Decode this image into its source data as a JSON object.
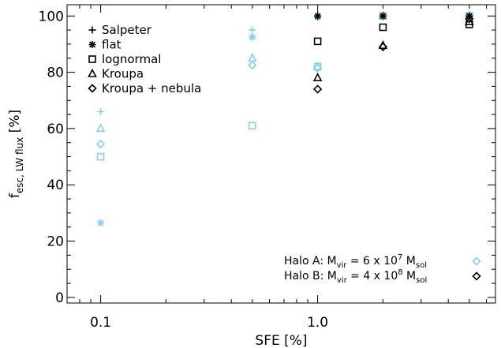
{
  "chart_data": {
    "type": "scatter",
    "x_scale": "log",
    "xlim": [
      0.07,
      6.6
    ],
    "ylim": [
      -2,
      104
    ],
    "xlabel": "SFE [%]",
    "ylabel_main": "f",
    "ylabel_sub": "esc, LW flux",
    "ylabel_tail": " [%]",
    "x_tick_labels": [
      {
        "value": 0.1,
        "label": "0.1"
      },
      {
        "value": 1.0,
        "label": "1.0"
      }
    ],
    "y_tick_labels": [
      0,
      20,
      40,
      60,
      80,
      100
    ],
    "colors": {
      "halo_a": "#87ceeb",
      "halo_b": "#000000"
    },
    "legend_markers": [
      {
        "name": "Salpeter",
        "marker": "plus"
      },
      {
        "name": "flat",
        "marker": "asterisk"
      },
      {
        "name": "lognormal",
        "marker": "square"
      },
      {
        "name": "Kroupa",
        "marker": "triangle"
      },
      {
        "name": "Kroupa + nebula",
        "marker": "diamond"
      }
    ],
    "legend_halos": [
      {
        "prefix": "Halo A: M",
        "sub1": "vir",
        "mid": " = 6 x 10",
        "sup": "7",
        "post": " M",
        "sub2": "sol",
        "color_key": "halo_a"
      },
      {
        "prefix": "Halo B: M",
        "sub1": "vir",
        "mid": " = 4 x 10",
        "sup": "8",
        "post": " M",
        "sub2": "sol",
        "color_key": "halo_b"
      }
    ],
    "series": [
      {
        "halo": "A",
        "imf": "Salpeter",
        "marker": "plus",
        "points": [
          {
            "x": 0.1,
            "y": 66
          },
          {
            "x": 0.5,
            "y": 95
          },
          {
            "x": 1.0,
            "y": 100
          },
          {
            "x": 2.0,
            "y": 100
          },
          {
            "x": 5.0,
            "y": 100
          }
        ]
      },
      {
        "halo": "A",
        "imf": "flat",
        "marker": "asterisk",
        "points": [
          {
            "x": 0.1,
            "y": 26.5
          },
          {
            "x": 0.5,
            "y": 92.5
          },
          {
            "x": 1.0,
            "y": 99.5
          },
          {
            "x": 2.0,
            "y": 100
          },
          {
            "x": 5.0,
            "y": 100
          }
        ]
      },
      {
        "halo": "A",
        "imf": "lognormal",
        "marker": "square",
        "points": [
          {
            "x": 0.1,
            "y": 50
          },
          {
            "x": 0.5,
            "y": 61
          },
          {
            "x": 1.0,
            "y": 82
          },
          {
            "x": 2.0,
            "y": 100
          },
          {
            "x": 5.0,
            "y": 100
          }
        ]
      },
      {
        "halo": "A",
        "imf": "Kroupa",
        "marker": "triangle",
        "points": [
          {
            "x": 0.1,
            "y": 60
          },
          {
            "x": 0.5,
            "y": 85
          },
          {
            "x": 1.0,
            "y": 82
          },
          {
            "x": 2.0,
            "y": 100
          },
          {
            "x": 5.0,
            "y": 100
          }
        ]
      },
      {
        "halo": "A",
        "imf": "Kroupa + nebula",
        "marker": "diamond",
        "points": [
          {
            "x": 0.1,
            "y": 54.5
          },
          {
            "x": 0.5,
            "y": 82.5
          },
          {
            "x": 1.0,
            "y": 81.5
          },
          {
            "x": 2.0,
            "y": 100
          },
          {
            "x": 5.0,
            "y": 100
          }
        ]
      },
      {
        "halo": "B",
        "imf": "Salpeter",
        "marker": "plus",
        "points": [
          {
            "x": 1.0,
            "y": 100
          },
          {
            "x": 2.0,
            "y": 100
          },
          {
            "x": 5.0,
            "y": 100
          }
        ]
      },
      {
        "halo": "B",
        "imf": "flat",
        "marker": "asterisk",
        "points": [
          {
            "x": 1.0,
            "y": 100
          },
          {
            "x": 2.0,
            "y": 100
          },
          {
            "x": 5.0,
            "y": 100
          }
        ]
      },
      {
        "halo": "B",
        "imf": "lognormal",
        "marker": "square",
        "points": [
          {
            "x": 1.0,
            "y": 91
          },
          {
            "x": 2.0,
            "y": 96
          },
          {
            "x": 5.0,
            "y": 97
          }
        ]
      },
      {
        "halo": "B",
        "imf": "Kroupa",
        "marker": "triangle",
        "points": [
          {
            "x": 1.0,
            "y": 78
          },
          {
            "x": 2.0,
            "y": 89.5
          },
          {
            "x": 5.0,
            "y": 98
          }
        ]
      },
      {
        "halo": "B",
        "imf": "Kroupa + nebula",
        "marker": "diamond",
        "points": [
          {
            "x": 1.0,
            "y": 74
          },
          {
            "x": 2.0,
            "y": 89
          },
          {
            "x": 5.0,
            "y": 99
          }
        ]
      }
    ]
  }
}
